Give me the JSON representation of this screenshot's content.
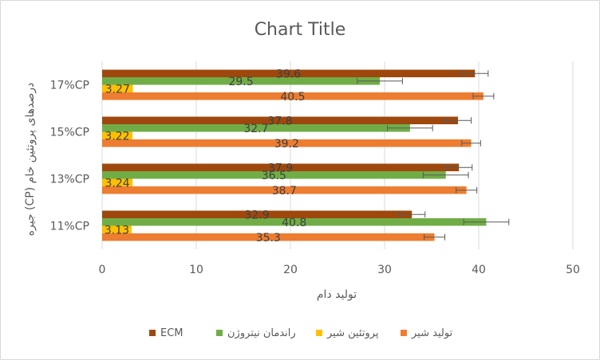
{
  "chart_data": {
    "type": "bar",
    "orientation": "horizontal",
    "title": "Chart Title",
    "xlabel": "تولید دام",
    "ylabel": "درصدهای پروتئین خام (CP) جیره",
    "xlim": [
      0,
      50
    ],
    "xticks": [
      0,
      10,
      20,
      30,
      40,
      50
    ],
    "grid": true,
    "legend_position": "bottom",
    "categories": [
      "11%CP",
      "13%CP",
      "15%CP",
      "17%CP"
    ],
    "series": [
      {
        "name": "تولید شیر",
        "color": "#ED7D31",
        "values": [
          35.3,
          38.7,
          39.2,
          40.5
        ],
        "labels": [
          "35.3",
          "38.7",
          "39.2",
          "40.5"
        ],
        "errors": [
          1.1,
          1.1,
          1.0,
          1.1
        ]
      },
      {
        "name": "پروتئین شیر",
        "color": "#FFC000",
        "values": [
          3.13,
          3.24,
          3.22,
          3.27
        ],
        "labels": [
          "3.13",
          "3.24",
          "3.22",
          "3.27"
        ],
        "errors": [
          0,
          0,
          0,
          0
        ]
      },
      {
        "name": "راندمان نیتروژن",
        "color": "#70AD47",
        "values": [
          40.8,
          36.5,
          32.7,
          29.5
        ],
        "labels": [
          "40.8",
          "36.5",
          "32.7",
          "29.5"
        ],
        "errors": [
          2.4,
          2.4,
          2.4,
          2.4
        ]
      },
      {
        "name": "ECM",
        "color": "#9E480E",
        "values": [
          32.9,
          37.9,
          37.8,
          39.6
        ],
        "labels": [
          "32.9",
          "37.9",
          "37.8",
          "39.6"
        ],
        "errors": [
          1.4,
          1.4,
          1.4,
          1.4
        ]
      }
    ]
  }
}
